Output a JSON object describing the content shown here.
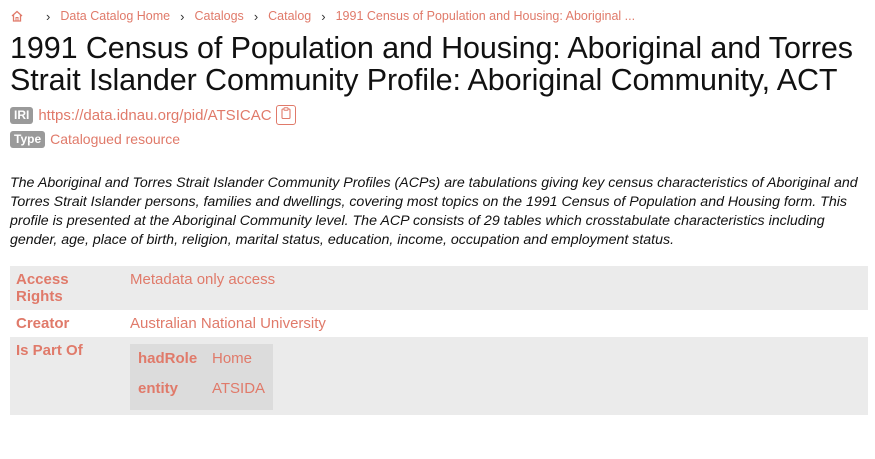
{
  "breadcrumb": {
    "home_icon": "home-icon",
    "items": [
      "Data Catalog Home",
      "Catalogs",
      "Catalog",
      "1991 Census of Population and Housing: Aboriginal ..."
    ]
  },
  "title": "1991 Census of Population and Housing: Aboriginal and Torres Strait Islander Community Profile: Aboriginal Community, ACT",
  "iri": {
    "badge": "IRI",
    "value": "https://data.idnau.org/pid/ATSICAC",
    "copy_icon": "clipboard-icon"
  },
  "type": {
    "badge": "Type",
    "value": "Catalogued resource"
  },
  "description": "The Aboriginal and Torres Strait Islander Community Profiles (ACPs) are tabulations giving key census characteristics of Aboriginal and Torres Strait Islander persons, families and dwellings, covering most topics on the 1991 Census of Population and Housing form. This profile is presented at the Aboriginal Community level. The ACP consists of 29 tables which crosstabulate characteristics including gender, age, place of birth, religion, marital status, education, income, occupation and employment status.",
  "properties": {
    "access_rights": {
      "key": "Access Rights",
      "value": "Metadata only access"
    },
    "creator": {
      "key": "Creator",
      "value": "Australian National University"
    },
    "is_part_of": {
      "key": "Is Part Of",
      "had_role": {
        "key": "hadRole",
        "value": "Home"
      },
      "entity": {
        "key": "entity",
        "value": "ATSIDA"
      }
    }
  },
  "colors": {
    "link": "#e07a6a",
    "badge_bg": "#9a9a9a",
    "row_shade": "#ebebeb",
    "nested_bg": "#dcdcdc"
  }
}
